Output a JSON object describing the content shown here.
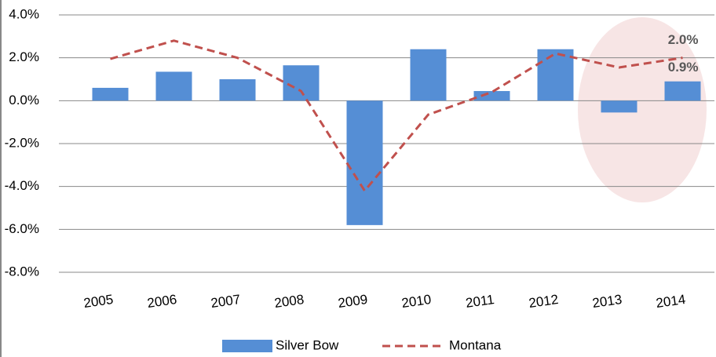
{
  "chart_data": {
    "type": "bar+line",
    "categories": [
      "2005",
      "2006",
      "2007",
      "2008",
      "2009",
      "2010",
      "2011",
      "2012",
      "2013",
      "2014"
    ],
    "series": [
      {
        "name": "Silver Bow",
        "type": "bar",
        "color": "#558ed5",
        "values": [
          0.6,
          1.35,
          1.0,
          1.65,
          -5.8,
          2.4,
          0.45,
          2.4,
          -0.55,
          0.9
        ],
        "value_labels": [
          null,
          null,
          null,
          null,
          null,
          null,
          null,
          null,
          null,
          "0.9%"
        ]
      },
      {
        "name": "Montana",
        "type": "line",
        "color": "#c0504d",
        "dashed": true,
        "values": [
          1.95,
          2.8,
          2.0,
          0.45,
          -4.2,
          -0.65,
          0.4,
          2.2,
          1.55,
          2.0
        ],
        "value_labels": [
          null,
          null,
          null,
          null,
          null,
          null,
          null,
          null,
          null,
          "2.0%"
        ]
      }
    ],
    "ylim": [
      -8,
      4
    ],
    "yticks": [
      {
        "value": -8,
        "label": "-8.0%"
      },
      {
        "value": -6,
        "label": "-6.0%"
      },
      {
        "value": -4,
        "label": "-4.0%"
      },
      {
        "value": -2,
        "label": "-2.0%"
      },
      {
        "value": 0,
        "label": "0.0%"
      },
      {
        "value": 2,
        "label": "2.0%"
      },
      {
        "value": 4,
        "label": "4.0%"
      }
    ],
    "grid": true,
    "legend": "bottom"
  }
}
